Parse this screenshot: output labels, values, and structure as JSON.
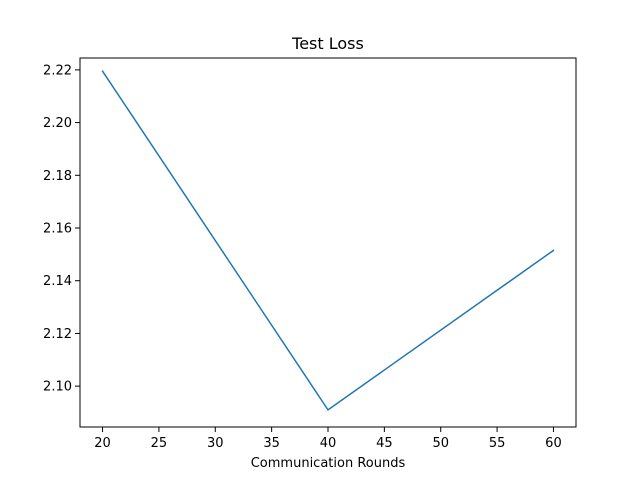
{
  "chart_data": {
    "type": "line",
    "title": "Test Loss",
    "xlabel": "Communication Rounds",
    "ylabel": "",
    "xlim": [
      18,
      62
    ],
    "ylim": [
      2.0845,
      2.2245
    ],
    "xticks": [
      20,
      25,
      30,
      35,
      40,
      45,
      50,
      55,
      60
    ],
    "yticks": [
      2.1,
      2.12,
      2.14,
      2.16,
      2.18,
      2.2,
      2.22
    ],
    "grid": false,
    "legend": "none",
    "series": [
      {
        "x": [
          20,
          40,
          60
        ],
        "y": [
          2.2195,
          2.091,
          2.1515
        ],
        "color": "#1f77b4"
      }
    ]
  }
}
